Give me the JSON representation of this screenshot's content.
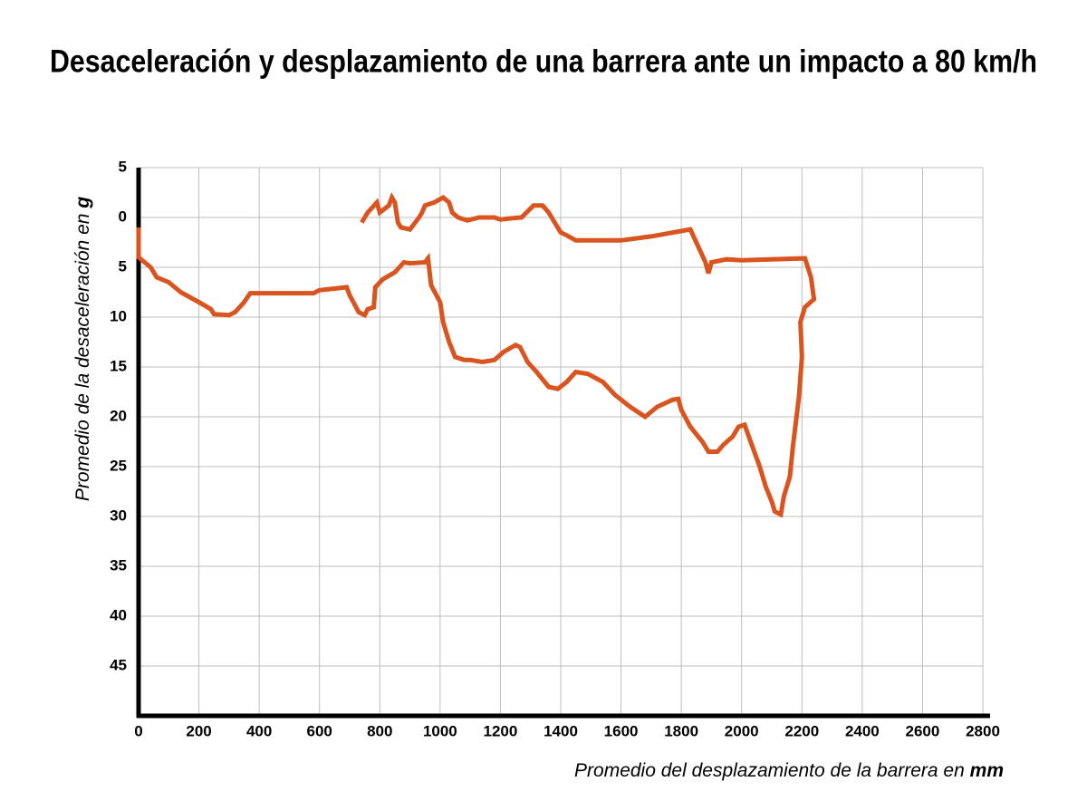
{
  "chart_data": {
    "type": "line",
    "title": "Desaceleración y desplazamiento de una barrera ante un impacto a 80 km/h",
    "x_label": "Promedio del desplazamiento de la barrera en",
    "x_unit": "mm",
    "y_label": "Promedio de la desaceleración en",
    "y_unit": "g",
    "color": "#d9541e",
    "grid": true,
    "xlim": [
      0,
      2800
    ],
    "xticks": [
      0,
      200,
      400,
      600,
      800,
      1000,
      1200,
      1400,
      1600,
      1800,
      2000,
      2200,
      2400,
      2600,
      2800
    ],
    "ylim": [
      50,
      -5
    ],
    "yticks": [
      {
        "value": -5,
        "label": "5"
      },
      0,
      5,
      10,
      15,
      20,
      25,
      30,
      35,
      40,
      45
    ],
    "x": [
      0,
      0,
      20,
      40,
      60,
      100,
      140,
      200,
      240,
      250,
      300,
      320,
      350,
      370,
      580,
      600,
      690,
      700,
      730,
      750,
      760,
      780,
      785,
      810,
      850,
      880,
      900,
      950,
      960,
      970,
      1000,
      1010,
      1030,
      1050,
      1080,
      1100,
      1140,
      1180,
      1210,
      1250,
      1265,
      1290,
      1320,
      1360,
      1390,
      1420,
      1450,
      1490,
      1540,
      1580,
      1630,
      1680,
      1720,
      1770,
      1790,
      1800,
      1830,
      1870,
      1890,
      1920,
      1940,
      1970,
      1990,
      2010,
      2030,
      2060,
      2080,
      2100,
      2110,
      2130,
      2140,
      2160,
      2170,
      2190,
      2200,
      2195,
      2210,
      2240,
      2230,
      2210,
      2000,
      1950,
      1900,
      1890,
      1880,
      1830,
      1700,
      1600,
      1450,
      1420,
      1400,
      1380,
      1360,
      1340,
      1310,
      1270,
      1230,
      1200,
      1180,
      1130,
      1090,
      1060,
      1040,
      1030,
      1010,
      980,
      950,
      940,
      930,
      900,
      870,
      860,
      850,
      840,
      830,
      800,
      790,
      760,
      740
    ],
    "values": [
      1,
      4,
      4.5,
      5,
      6,
      6.5,
      7.5,
      8.5,
      9.2,
      9.7,
      9.8,
      9.5,
      8.5,
      7.6,
      7.6,
      7.3,
      7,
      7.8,
      9.5,
      9.8,
      9.2,
      9,
      7,
      6.2,
      5.5,
      4.5,
      4.6,
      4.5,
      4.1,
      6.8,
      8.5,
      10.5,
      12.5,
      14,
      14.3,
      14.3,
      14.5,
      14.3,
      13.5,
      12.8,
      13,
      14.5,
      15.5,
      17,
      17.2,
      16.5,
      15.5,
      15.7,
      16.5,
      17.8,
      19,
      20,
      19,
      18.3,
      18.2,
      19.3,
      21,
      22.5,
      23.5,
      23.5,
      22.8,
      22,
      21,
      20.8,
      22.5,
      25,
      27,
      28.5,
      29.5,
      29.8,
      28,
      26,
      23,
      18,
      14,
      10.5,
      9,
      8.2,
      6,
      4.1,
      4.3,
      4.2,
      4.5,
      5.6,
      4.5,
      1.2,
      1.9,
      2.3,
      2.3,
      1.8,
      1.5,
      0.5,
      -0.5,
      -1.2,
      -1.2,
      0,
      0.1,
      0.2,
      0,
      0,
      0.3,
      0,
      -0.5,
      -1.5,
      -2,
      -1.5,
      -1.2,
      -0.5,
      0,
      1.2,
      1,
      0.5,
      -1.5,
      -2,
      -1.2,
      -0.5,
      -1.5,
      -0.5,
      0.5
    ]
  }
}
